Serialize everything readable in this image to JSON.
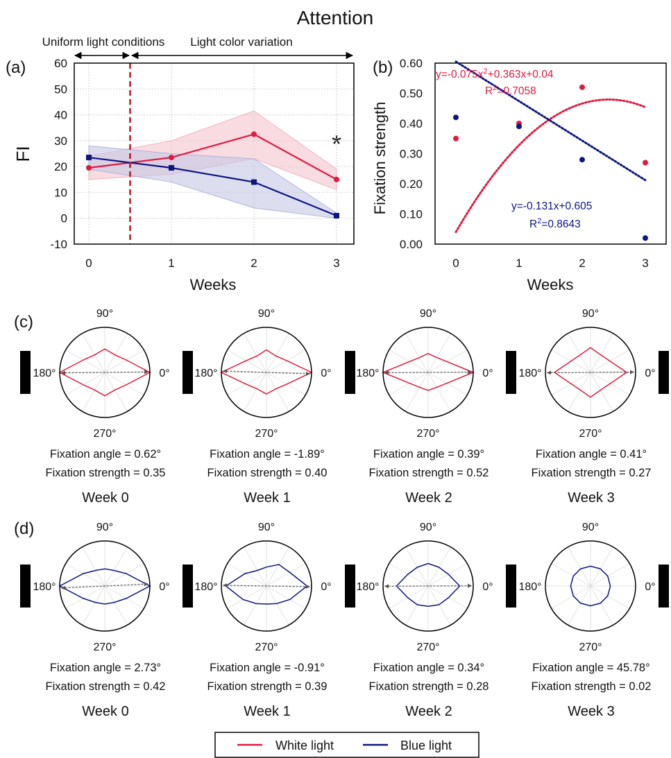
{
  "title": "Attention",
  "colors": {
    "white": "#e0193f",
    "blue": "#0d1680",
    "white_band": "#f4c4cd",
    "blue_band": "#c4c8e6",
    "marker_line": "#c0141c",
    "arrow": "#555555"
  },
  "panel_a": {
    "label": "(a)",
    "ylabel": "FI",
    "xlabel": "Weeks",
    "phase1_label": "Uniform light conditions",
    "phase2_label": "Light color variation",
    "significance": "*"
  },
  "panel_b": {
    "label": "(b)",
    "ylabel": "Fixation strength",
    "xlabel": "Weeks",
    "white_eq": "y=-0.075x",
    "white_eq_exp": "2",
    "white_eq_rest": "+0.363x+0.04",
    "white_r2_prefix": "R",
    "white_r2_exp": "2",
    "white_r2_value": "=0.7058",
    "blue_eq": "y=-0.131x+0.605",
    "blue_r2_prefix": "R",
    "blue_r2_exp": "2",
    "blue_r2_value": "=0.8643"
  },
  "panel_c": {
    "label": "(c)"
  },
  "panel_d": {
    "label": "(d)"
  },
  "legend": {
    "white": "White light",
    "blue": "Blue light"
  },
  "chart_data": [
    {
      "type": "line",
      "panel": "a",
      "x": [
        0,
        1,
        2,
        3
      ],
      "xticks": [
        "0",
        "1",
        "2",
        "3"
      ],
      "ylim": [
        -10,
        60
      ],
      "yticks": [
        "-10",
        "0",
        "10",
        "20",
        "30",
        "40",
        "50",
        "60"
      ],
      "grid": true,
      "condition_change_x": 0.5,
      "series": [
        {
          "name": "White light",
          "values": [
            19.5,
            23.5,
            32.5,
            15
          ],
          "lower": [
            15,
            17,
            23,
            11
          ],
          "upper": [
            24,
            30,
            41.5,
            19
          ]
        },
        {
          "name": "Blue light",
          "values": [
            23.5,
            19.5,
            14,
            1
          ],
          "lower": [
            19,
            14,
            4,
            0
          ],
          "upper": [
            28,
            25,
            23,
            2
          ]
        }
      ]
    },
    {
      "type": "scatter",
      "panel": "b",
      "x": [
        0,
        1,
        2,
        3
      ],
      "xticks": [
        "0",
        "1",
        "2",
        "3"
      ],
      "ylim": [
        0,
        0.6
      ],
      "yticks": [
        "0.00",
        "0.10",
        "0.20",
        "0.30",
        "0.40",
        "0.50",
        "0.60"
      ],
      "grid": false,
      "series": [
        {
          "name": "White light",
          "values": [
            0.35,
            0.4,
            0.52,
            0.27
          ],
          "fit": "quadratic",
          "coef": [
            -0.075,
            0.363,
            0.04
          ]
        },
        {
          "name": "Blue light",
          "values": [
            0.42,
            0.39,
            0.28,
            0.02
          ],
          "fit": "linear",
          "coef": [
            -0.131,
            0.605
          ]
        }
      ]
    }
  ],
  "polar_common": {
    "angle_labels": [
      "90°",
      "180°",
      "0°",
      "270°"
    ]
  },
  "polar_c": [
    {
      "week": "Week 0",
      "angle_text": "Fixation angle = 0.62°",
      "strength_text": "Fixation strength = 0.35",
      "angle": 0.62,
      "strength": 0.35,
      "has_arrow": true,
      "radii": [
        1.0,
        0.55,
        0.45,
        0.52,
        0.45,
        0.55,
        1.0,
        0.55,
        0.45,
        0.52,
        0.45,
        0.55
      ]
    },
    {
      "week": "Week 1",
      "angle_text": "Fixation angle = -1.89°",
      "strength_text": "Fixation strength = 0.40",
      "angle": -1.89,
      "strength": 0.4,
      "has_arrow": true,
      "radii": [
        1.0,
        0.52,
        0.42,
        0.5,
        0.42,
        0.52,
        1.0,
        0.52,
        0.42,
        0.48,
        0.42,
        0.52
      ]
    },
    {
      "week": "Week 2",
      "angle_text": "Fixation angle = 0.39°",
      "strength_text": "Fixation strength = 0.52",
      "angle": 0.39,
      "strength": 0.52,
      "has_arrow": true,
      "radii": [
        1.0,
        0.48,
        0.38,
        0.42,
        0.38,
        0.48,
        1.0,
        0.48,
        0.38,
        0.4,
        0.38,
        0.48
      ]
    },
    {
      "week": "Week 3",
      "angle_text": "Fixation angle = 0.41°",
      "strength_text": "Fixation strength = 0.27",
      "angle": 0.41,
      "strength": 0.27,
      "has_arrow": true,
      "radii": [
        0.8,
        0.5,
        0.45,
        0.55,
        0.45,
        0.5,
        0.8,
        0.5,
        0.45,
        0.55,
        0.45,
        0.5
      ]
    }
  ],
  "polar_d": [
    {
      "week": "Week 0",
      "angle_text": "Fixation angle = 2.73°",
      "strength_text": "Fixation strength = 0.42",
      "angle": 2.73,
      "strength": 0.42,
      "has_arrow": true,
      "radii": [
        1.0,
        0.55,
        0.4,
        0.38,
        0.4,
        0.55,
        1.0,
        0.55,
        0.42,
        0.4,
        0.42,
        0.55
      ]
    },
    {
      "week": "Week 1",
      "angle_text": "Fixation angle = -0.91°",
      "strength_text": "Fixation strength = 0.39",
      "angle": -0.91,
      "strength": 0.39,
      "has_arrow": true,
      "radii": [
        0.9,
        0.6,
        0.55,
        0.42,
        0.4,
        0.55,
        0.9,
        0.6,
        0.45,
        0.4,
        0.45,
        0.6
      ]
    },
    {
      "week": "Week 2",
      "angle_text": "Fixation angle = 0.34°",
      "strength_text": "Fixation strength = 0.28",
      "angle": 0.34,
      "strength": 0.28,
      "has_arrow": true,
      "radii": [
        0.7,
        0.52,
        0.48,
        0.5,
        0.48,
        0.52,
        0.7,
        0.52,
        0.48,
        0.45,
        0.48,
        0.52
      ]
    },
    {
      "week": "Week 3",
      "angle_text": "Fixation angle = 45.78°",
      "strength_text": "Fixation strength = 0.02",
      "angle": 45.78,
      "strength": 0.02,
      "has_arrow": false,
      "radii": [
        0.44,
        0.44,
        0.44,
        0.44,
        0.44,
        0.44,
        0.44,
        0.44,
        0.44,
        0.44,
        0.44,
        0.44
      ]
    }
  ]
}
